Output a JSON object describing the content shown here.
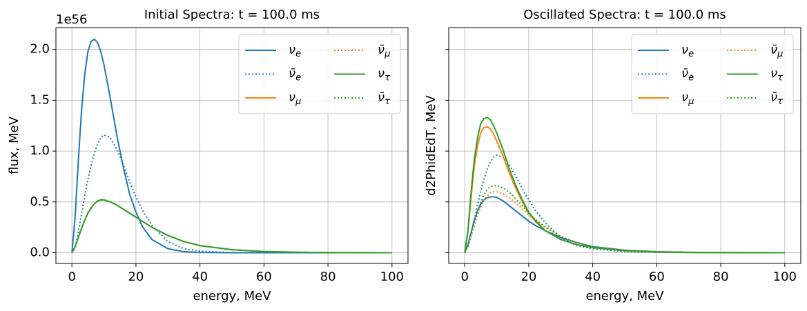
{
  "chart_data": [
    {
      "type": "line",
      "title": "Initial Spectra: t = 100.0 ms",
      "y_offset_label": "1e56",
      "xlabel": "energy, MeV",
      "ylabel": "flux, MeV",
      "x": [
        0,
        1,
        2,
        3,
        4,
        5,
        6,
        7,
        8,
        9,
        10,
        12,
        14,
        16,
        18,
        20,
        22,
        25,
        30,
        35,
        40,
        50,
        60,
        70,
        80,
        100
      ],
      "xlim": [
        -5,
        105
      ],
      "xticks": [
        0,
        20,
        40,
        60,
        80,
        100
      ],
      "ylim": [
        -0.105,
        2.215
      ],
      "yticks": [
        {
          "value": 0,
          "label": "0.0"
        },
        0.5,
        {
          "value": 1,
          "label": "1.0"
        },
        1.5,
        {
          "value": 2,
          "label": "2.0"
        }
      ],
      "show_ytick_labels": true,
      "grid": true,
      "legend": "upper right",
      "legend_columns": 2,
      "series": [
        {
          "name": "νe",
          "color": "#1f77b4",
          "linestyle": "solid",
          "values": [
            0,
            0.35,
            0.9,
            1.4,
            1.75,
            1.98,
            2.08,
            2.1,
            2.07,
            1.98,
            1.85,
            1.52,
            1.16,
            0.85,
            0.58,
            0.4,
            0.26,
            0.13,
            0.04,
            0.01,
            0.003,
            0,
            0,
            0,
            0,
            0
          ]
        },
        {
          "name": "ν̄e",
          "color": "#1f77b4",
          "linestyle": "dotted",
          "values": [
            0,
            0.05,
            0.2,
            0.38,
            0.56,
            0.72,
            0.86,
            0.98,
            1.07,
            1.13,
            1.16,
            1.13,
            1.02,
            0.87,
            0.7,
            0.55,
            0.42,
            0.27,
            0.11,
            0.04,
            0.015,
            0.002,
            0,
            0,
            0,
            0
          ]
        },
        {
          "name": "νμ",
          "color": "#ff7f0e",
          "linestyle": "solid",
          "values": [
            0,
            0.06,
            0.15,
            0.24,
            0.32,
            0.39,
            0.44,
            0.48,
            0.51,
            0.52,
            0.52,
            0.5,
            0.47,
            0.43,
            0.39,
            0.35,
            0.31,
            0.25,
            0.17,
            0.11,
            0.07,
            0.03,
            0.012,
            0.005,
            0.002,
            0
          ]
        },
        {
          "name": "ν̄μ",
          "color": "#ff7f0e",
          "linestyle": "dotted",
          "values": [
            0,
            0.06,
            0.15,
            0.24,
            0.32,
            0.39,
            0.44,
            0.48,
            0.51,
            0.52,
            0.52,
            0.5,
            0.47,
            0.43,
            0.39,
            0.35,
            0.31,
            0.25,
            0.17,
            0.11,
            0.07,
            0.03,
            0.012,
            0.005,
            0.002,
            0
          ]
        },
        {
          "name": "ντ",
          "color": "#2ca02c",
          "linestyle": "solid",
          "values": [
            0,
            0.06,
            0.15,
            0.24,
            0.32,
            0.39,
            0.44,
            0.48,
            0.51,
            0.52,
            0.52,
            0.5,
            0.47,
            0.43,
            0.39,
            0.35,
            0.31,
            0.25,
            0.17,
            0.11,
            0.07,
            0.03,
            0.012,
            0.005,
            0.002,
            0
          ]
        },
        {
          "name": "ν̄τ",
          "color": "#2ca02c",
          "linestyle": "dotted",
          "values": [
            0,
            0.06,
            0.15,
            0.24,
            0.32,
            0.39,
            0.44,
            0.48,
            0.51,
            0.52,
            0.52,
            0.5,
            0.47,
            0.43,
            0.39,
            0.35,
            0.31,
            0.25,
            0.17,
            0.11,
            0.07,
            0.03,
            0.012,
            0.005,
            0.002,
            0
          ]
        }
      ]
    },
    {
      "type": "line",
      "title": "Oscillated Spectra: t = 100.0 ms",
      "xlabel": "energy, MeV",
      "ylabel": "d2PhidEdT, MeV",
      "x": [
        0,
        1,
        2,
        3,
        4,
        5,
        6,
        7,
        8,
        9,
        10,
        12,
        14,
        16,
        18,
        20,
        22,
        25,
        30,
        35,
        40,
        50,
        60,
        70,
        80,
        100
      ],
      "xlim": [
        -5,
        105
      ],
      "xticks": [
        0,
        20,
        40,
        60,
        80,
        100
      ],
      "ylim": [
        -0.105,
        2.215
      ],
      "yticks": [
        0,
        0.5,
        1,
        1.5,
        2
      ],
      "show_ytick_labels": false,
      "grid": true,
      "legend": "upper right",
      "legend_columns": 2,
      "series": [
        {
          "name": "νe",
          "color": "#1f77b4",
          "linestyle": "solid",
          "values": [
            0,
            0.08,
            0.2,
            0.32,
            0.41,
            0.48,
            0.52,
            0.54,
            0.55,
            0.55,
            0.545,
            0.51,
            0.46,
            0.41,
            0.36,
            0.31,
            0.27,
            0.22,
            0.15,
            0.1,
            0.06,
            0.025,
            0.01,
            0.004,
            0.002,
            0
          ]
        },
        {
          "name": "ν̄e",
          "color": "#1f77b4",
          "linestyle": "dotted",
          "values": [
            0,
            0.06,
            0.18,
            0.33,
            0.47,
            0.6,
            0.72,
            0.82,
            0.89,
            0.94,
            0.96,
            0.94,
            0.86,
            0.75,
            0.63,
            0.52,
            0.42,
            0.3,
            0.15,
            0.07,
            0.04,
            0.01,
            0.005,
            0.002,
            0.001,
            0
          ]
        },
        {
          "name": "νμ",
          "color": "#ff7f0e",
          "linestyle": "solid",
          "values": [
            0,
            0.2,
            0.55,
            0.85,
            1.05,
            1.18,
            1.23,
            1.24,
            1.22,
            1.17,
            1.1,
            0.95,
            0.78,
            0.63,
            0.5,
            0.39,
            0.31,
            0.22,
            0.13,
            0.08,
            0.05,
            0.02,
            0.008,
            0.003,
            0.001,
            0
          ]
        },
        {
          "name": "ν̄μ",
          "color": "#ff7f0e",
          "linestyle": "dotted",
          "values": [
            0,
            0.06,
            0.16,
            0.27,
            0.37,
            0.45,
            0.51,
            0.56,
            0.59,
            0.6,
            0.6,
            0.58,
            0.54,
            0.49,
            0.43,
            0.37,
            0.32,
            0.25,
            0.16,
            0.1,
            0.06,
            0.025,
            0.01,
            0.004,
            0.002,
            0
          ]
        },
        {
          "name": "ντ",
          "color": "#2ca02c",
          "linestyle": "solid",
          "values": [
            0,
            0.22,
            0.6,
            0.92,
            1.13,
            1.27,
            1.32,
            1.33,
            1.31,
            1.25,
            1.18,
            1.01,
            0.82,
            0.66,
            0.52,
            0.4,
            0.32,
            0.22,
            0.13,
            0.08,
            0.05,
            0.02,
            0.008,
            0.003,
            0.001,
            0
          ]
        },
        {
          "name": "ν̄τ",
          "color": "#2ca02c",
          "linestyle": "dotted",
          "values": [
            0,
            0.07,
            0.18,
            0.3,
            0.41,
            0.5,
            0.57,
            0.62,
            0.65,
            0.66,
            0.66,
            0.64,
            0.59,
            0.53,
            0.46,
            0.39,
            0.33,
            0.26,
            0.16,
            0.1,
            0.06,
            0.025,
            0.01,
            0.004,
            0.002,
            0
          ]
        }
      ]
    }
  ]
}
